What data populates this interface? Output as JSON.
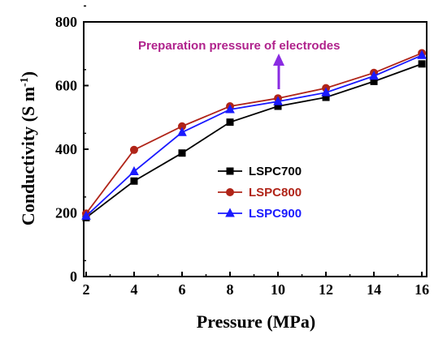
{
  "chart_data": {
    "type": "line",
    "title": "",
    "xlabel": "Pressure (MPa)",
    "ylabel": "Conductivity",
    "ylabel_unit": "(S m",
    "ylabel_unit_sup": "-1",
    "ylabel_unit_close": ")",
    "x": [
      2,
      4,
      6,
      8,
      10,
      12,
      14,
      16
    ],
    "xticks": [
      2,
      4,
      6,
      8,
      10,
      12,
      14,
      16
    ],
    "yticks": [
      0,
      200,
      400,
      600,
      800
    ],
    "xlim": [
      1.9,
      16.2
    ],
    "ylim": [
      0,
      800
    ],
    "grid": false,
    "legend_position": "center-right",
    "series": [
      {
        "name": "LSPC700",
        "color": "#000000",
        "marker": "square",
        "values": [
          185,
          300,
          388,
          485,
          535,
          563,
          613,
          668
        ]
      },
      {
        "name": "LSPC800",
        "color": "#b02418",
        "marker": "circle",
        "values": [
          198,
          398,
          472,
          535,
          560,
          592,
          640,
          702
        ]
      },
      {
        "name": "LSPC900",
        "color": "#1a1aff",
        "marker": "triangle",
        "values": [
          190,
          330,
          453,
          525,
          550,
          578,
          630,
          695
        ]
      }
    ],
    "annotation": {
      "text": "Preparation pressure of electrodes",
      "color": "#b0228c",
      "arrow_color": "#8a2be2"
    }
  }
}
